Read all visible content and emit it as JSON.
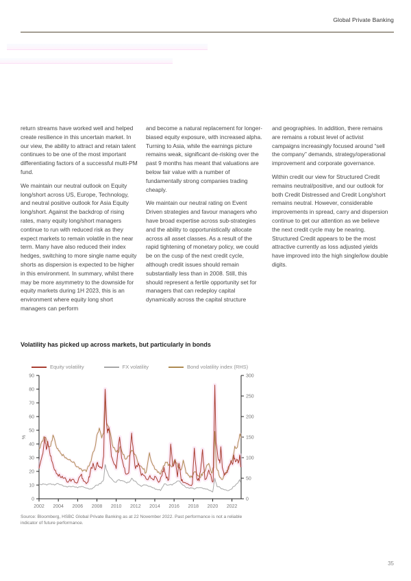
{
  "header": {
    "brand": "Global Private Banking"
  },
  "page_number": "35",
  "columns": [
    {
      "paragraphs": [
        "return streams have worked well and helped create resilience in this uncertain market. In our view, the ability to attract and retain talent continues to be one of the most important differentiating factors of a successful multi-PM fund.",
        "We maintain our neutral outlook on Equity long/short across US, Europe, Technology, and neutral positive outlook for Asia Equity long/short. Against the backdrop of rising rates, many equity long/short managers continue to run with reduced risk as they expect markets to remain volatile in the near term. Many have also reduced their index hedges, switching to more single name equity shorts as dispersion is expected to be higher in this environment. In summary, whilst there may be more asymmetry to the downside for equity markets during 1H 2023, this is an environment where equity long short managers can perform"
      ]
    },
    {
      "paragraphs": [
        "and become a natural replacement for longer-biased equity exposure, with increased alpha. Turning to Asia, while the earnings picture remains weak, significant de-risking over the past 9 months has meant that valuations are below fair value with a number of fundamentally strong companies trading cheaply.",
        "We maintain our neutral rating on Event Driven strategies and favour managers who have broad expertise across sub-strategies and the ability to opportunistically allocate across all asset classes. As a result of the rapid tightening of monetary policy, we could be on the cusp of the next credit cycle, although credit issues should remain substantially less than in 2008. Still, this should represent a fertile opportunity set for managers that can redeploy capital dynamically across the capital structure"
      ]
    },
    {
      "paragraphs": [
        "and geographies. In addition, there remains are remains a robust level of activist campaigns increasingly focused around “sell the company” demands, strategy/operational improvement and corporate governance.",
        "Within credit our view for Structured Credit remains neutral/positive, and our outlook for both Credit Distressed and Credit Long/short remains neutral. However, considerable improvements in spread, carry and dispersion continue to get our attention as we believe the next credit cycle may be nearing. Structured Credit appears to be the most attractive currently as loss adjusted yields have improved into the high single/low double digits."
      ]
    }
  ],
  "chart": {
    "title": "Volatility has picked up across markets, but particularly in bonds",
    "source": "Source: Bloomberg, HSBC Global Private Banking as at 22 November 2022. Past performance is not a reliable indicator of future performance."
  },
  "chart_data": {
    "type": "line",
    "title": "Volatility has picked up across markets, but particularly in bonds",
    "ylabel_left": "%",
    "grid": false,
    "legend_position": "top",
    "left_axis": {
      "min": 0,
      "max": 90,
      "ticks": [
        0,
        10,
        20,
        30,
        40,
        50,
        60,
        70,
        80,
        90
      ]
    },
    "right_axis": {
      "min": 0,
      "max": 300,
      "ticks": [
        0,
        50,
        100,
        150,
        200,
        250,
        300
      ]
    },
    "x_axis": {
      "min": 2002,
      "max": 2022.95,
      "ticks": [
        2002,
        2004,
        2006,
        2008,
        2010,
        2012,
        2014,
        2016,
        2018,
        2020,
        2022
      ]
    },
    "halo_color": "#f9d9ef",
    "series": [
      {
        "name": "Equity volatility",
        "axis": "left",
        "color": "#a83c2f",
        "jitter": 1.6,
        "points": [
          [
            2002.0,
            22
          ],
          [
            2002.2,
            28
          ],
          [
            2002.4,
            33
          ],
          [
            2002.6,
            45
          ],
          [
            2002.75,
            36
          ],
          [
            2002.9,
            42
          ],
          [
            2003.1,
            34
          ],
          [
            2003.3,
            28
          ],
          [
            2003.6,
            21
          ],
          [
            2003.9,
            18
          ],
          [
            2004.2,
            16
          ],
          [
            2004.5,
            15
          ],
          [
            2004.8,
            14
          ],
          [
            2005.1,
            13
          ],
          [
            2005.4,
            14
          ],
          [
            2005.7,
            12
          ],
          [
            2006.0,
            12
          ],
          [
            2006.4,
            18
          ],
          [
            2006.6,
            13
          ],
          [
            2006.9,
            11
          ],
          [
            2007.1,
            13
          ],
          [
            2007.3,
            19
          ],
          [
            2007.6,
            26
          ],
          [
            2007.8,
            21
          ],
          [
            2008.0,
            26
          ],
          [
            2008.2,
            24
          ],
          [
            2008.5,
            22
          ],
          [
            2008.7,
            31
          ],
          [
            2008.85,
            80
          ],
          [
            2008.95,
            60
          ],
          [
            2009.1,
            48
          ],
          [
            2009.25,
            52
          ],
          [
            2009.5,
            31
          ],
          [
            2009.75,
            26
          ],
          [
            2010.0,
            22
          ],
          [
            2010.35,
            45
          ],
          [
            2010.55,
            30
          ],
          [
            2010.8,
            23
          ],
          [
            2011.0,
            18
          ],
          [
            2011.3,
            19
          ],
          [
            2011.6,
            48
          ],
          [
            2011.8,
            33
          ],
          [
            2012.0,
            22
          ],
          [
            2012.3,
            26
          ],
          [
            2012.6,
            17
          ],
          [
            2012.9,
            17
          ],
          [
            2013.2,
            14
          ],
          [
            2013.5,
            17
          ],
          [
            2013.8,
            14
          ],
          [
            2014.1,
            16
          ],
          [
            2014.4,
            12
          ],
          [
            2014.75,
            17
          ],
          [
            2014.95,
            23
          ],
          [
            2015.2,
            15
          ],
          [
            2015.45,
            14
          ],
          [
            2015.65,
            40
          ],
          [
            2015.85,
            24
          ],
          [
            2016.1,
            28
          ],
          [
            2016.35,
            16
          ],
          [
            2016.5,
            26
          ],
          [
            2016.75,
            13
          ],
          [
            2017.0,
            12
          ],
          [
            2017.3,
            11
          ],
          [
            2017.6,
            10
          ],
          [
            2017.9,
            11
          ],
          [
            2018.1,
            37
          ],
          [
            2018.35,
            15
          ],
          [
            2018.6,
            13
          ],
          [
            2018.8,
            25
          ],
          [
            2018.95,
            36
          ],
          [
            2019.2,
            14
          ],
          [
            2019.4,
            16
          ],
          [
            2019.6,
            21
          ],
          [
            2019.9,
            14
          ],
          [
            2020.05,
            13
          ],
          [
            2020.22,
            83
          ],
          [
            2020.35,
            41
          ],
          [
            2020.55,
            30
          ],
          [
            2020.75,
            26
          ],
          [
            2020.85,
            38
          ],
          [
            2021.0,
            23
          ],
          [
            2021.2,
            17
          ],
          [
            2021.45,
            19
          ],
          [
            2021.7,
            24
          ],
          [
            2021.9,
            28
          ],
          [
            2022.05,
            25
          ],
          [
            2022.2,
            32
          ],
          [
            2022.35,
            27
          ],
          [
            2022.5,
            29
          ],
          [
            2022.65,
            26
          ],
          [
            2022.8,
            32
          ],
          [
            2022.92,
            23
          ]
        ]
      },
      {
        "name": "FX volatility",
        "axis": "left",
        "color": "#a6a6a6",
        "jitter": 0.6,
        "points": [
          [
            2002.0,
            10
          ],
          [
            2002.4,
            11
          ],
          [
            2002.8,
            10
          ],
          [
            2003.2,
            11
          ],
          [
            2003.6,
            10
          ],
          [
            2004.0,
            11
          ],
          [
            2004.4,
            10
          ],
          [
            2004.8,
            9
          ],
          [
            2005.2,
            9
          ],
          [
            2005.6,
            9
          ],
          [
            2006.0,
            8
          ],
          [
            2006.4,
            9
          ],
          [
            2006.8,
            8
          ],
          [
            2007.2,
            7
          ],
          [
            2007.6,
            8
          ],
          [
            2008.0,
            10
          ],
          [
            2008.4,
            11
          ],
          [
            2008.7,
            14
          ],
          [
            2008.85,
            25
          ],
          [
            2009.0,
            21
          ],
          [
            2009.3,
            16
          ],
          [
            2009.6,
            14
          ],
          [
            2010.0,
            12
          ],
          [
            2010.3,
            14
          ],
          [
            2010.7,
            13
          ],
          [
            2011.0,
            12
          ],
          [
            2011.3,
            12
          ],
          [
            2011.6,
            15
          ],
          [
            2011.9,
            13
          ],
          [
            2012.2,
            11
          ],
          [
            2012.6,
            9
          ],
          [
            2013.0,
            10
          ],
          [
            2013.4,
            9
          ],
          [
            2013.8,
            8
          ],
          [
            2014.2,
            7
          ],
          [
            2014.6,
            6
          ],
          [
            2015.0,
            11
          ],
          [
            2015.4,
            10
          ],
          [
            2015.8,
            10
          ],
          [
            2016.2,
            12
          ],
          [
            2016.55,
            13
          ],
          [
            2016.9,
            10
          ],
          [
            2017.3,
            8
          ],
          [
            2017.7,
            8
          ],
          [
            2018.1,
            7
          ],
          [
            2018.5,
            8
          ],
          [
            2018.9,
            8
          ],
          [
            2019.3,
            7
          ],
          [
            2019.7,
            6
          ],
          [
            2020.0,
            5
          ],
          [
            2020.22,
            15
          ],
          [
            2020.45,
            9
          ],
          [
            2020.8,
            8
          ],
          [
            2021.1,
            7
          ],
          [
            2021.5,
            6
          ],
          [
            2021.9,
            7
          ],
          [
            2022.2,
            9
          ],
          [
            2022.5,
            11
          ],
          [
            2022.8,
            14
          ],
          [
            2022.92,
            12
          ]
        ]
      },
      {
        "name": "Bond volatility index (RHS)",
        "axis": "right",
        "color": "#ad8a50",
        "jitter": 5,
        "points": [
          [
            2002.0,
            120
          ],
          [
            2002.3,
            140
          ],
          [
            2002.6,
            150
          ],
          [
            2002.9,
            132
          ],
          [
            2003.2,
            128
          ],
          [
            2003.45,
            155
          ],
          [
            2003.7,
            135
          ],
          [
            2003.95,
            122
          ],
          [
            2004.2,
            112
          ],
          [
            2004.5,
            108
          ],
          [
            2004.8,
            100
          ],
          [
            2005.1,
            95
          ],
          [
            2005.4,
            90
          ],
          [
            2005.7,
            86
          ],
          [
            2006.0,
            78
          ],
          [
            2006.3,
            74
          ],
          [
            2006.6,
            70
          ],
          [
            2006.9,
            66
          ],
          [
            2007.2,
            80
          ],
          [
            2007.5,
            105
          ],
          [
            2007.8,
            125
          ],
          [
            2008.0,
            155
          ],
          [
            2008.25,
            172
          ],
          [
            2008.5,
            148
          ],
          [
            2008.7,
            160
          ],
          [
            2008.85,
            264
          ],
          [
            2009.0,
            185
          ],
          [
            2009.3,
            168
          ],
          [
            2009.6,
            132
          ],
          [
            2009.9,
            118
          ],
          [
            2010.2,
            112
          ],
          [
            2010.45,
            128
          ],
          [
            2010.7,
            108
          ],
          [
            2011.0,
            96
          ],
          [
            2011.3,
            104
          ],
          [
            2011.6,
            118
          ],
          [
            2011.9,
            108
          ],
          [
            2012.2,
            92
          ],
          [
            2012.5,
            80
          ],
          [
            2012.8,
            72
          ],
          [
            2013.1,
            64
          ],
          [
            2013.45,
            112
          ],
          [
            2013.7,
            88
          ],
          [
            2014.0,
            72
          ],
          [
            2014.3,
            64
          ],
          [
            2014.6,
            60
          ],
          [
            2014.9,
            80
          ],
          [
            2015.2,
            88
          ],
          [
            2015.5,
            84
          ],
          [
            2015.8,
            78
          ],
          [
            2016.1,
            96
          ],
          [
            2016.4,
            76
          ],
          [
            2016.7,
            70
          ],
          [
            2016.95,
            94
          ],
          [
            2017.25,
            62
          ],
          [
            2017.55,
            56
          ],
          [
            2017.85,
            52
          ],
          [
            2018.15,
            66
          ],
          [
            2018.45,
            56
          ],
          [
            2018.75,
            52
          ],
          [
            2019.0,
            64
          ],
          [
            2019.3,
            74
          ],
          [
            2019.6,
            86
          ],
          [
            2019.9,
            62
          ],
          [
            2020.1,
            75
          ],
          [
            2020.22,
            164
          ],
          [
            2020.4,
            76
          ],
          [
            2020.65,
            58
          ],
          [
            2020.9,
            48
          ],
          [
            2021.15,
            56
          ],
          [
            2021.4,
            62
          ],
          [
            2021.65,
            72
          ],
          [
            2021.9,
            88
          ],
          [
            2022.1,
            102
          ],
          [
            2022.3,
            128
          ],
          [
            2022.5,
            124
          ],
          [
            2022.7,
            142
          ],
          [
            2022.85,
            158
          ],
          [
            2022.95,
            148
          ]
        ]
      }
    ],
    "source": "Source: Bloomberg, HSBC Global Private Banking as at 22 November 2022. Past performance is not a reliable indicator of future performance."
  }
}
